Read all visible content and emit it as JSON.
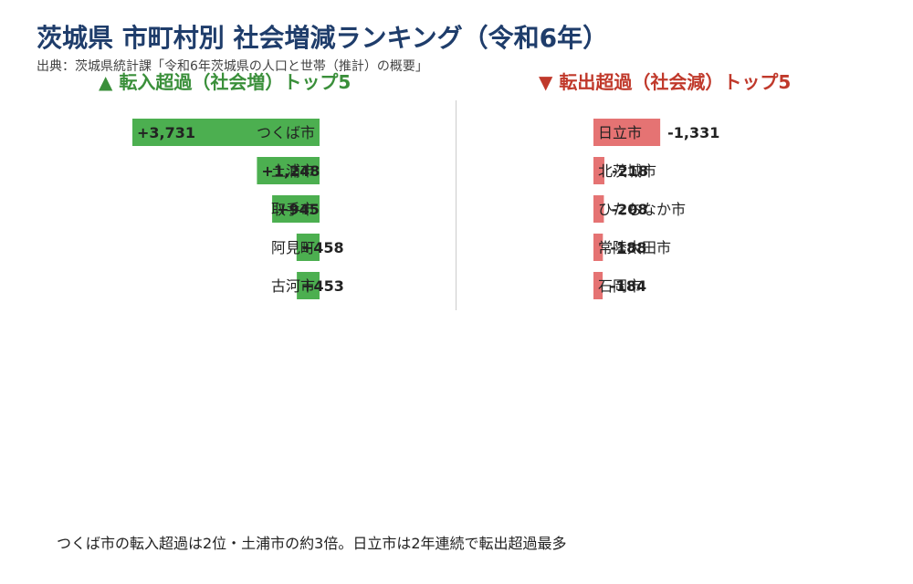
{
  "title": "茨城県 市町村別 社会増減ランキング（令和6年）",
  "source": "出典：茨城県統計課「令和6年茨城県の人口と世帯（推計）の概要」",
  "note": "つくば市の転入超過は2位・土浦市の約3倍。日立市は2年連続で転出超過最多",
  "colors": {
    "increase": "#4caf50",
    "decrease": "#e57373",
    "title": "#1f3d6b",
    "increase_heading": "#3a8f3a",
    "decrease_heading": "#c0392b"
  },
  "chart_data": [
    {
      "type": "bar",
      "orientation": "horizontal",
      "title": "▲ 転入超過（社会増）トップ5",
      "categories": [
        "つくば市",
        "土浦市",
        "取手市",
        "阿見町",
        "古河市"
      ],
      "values": [
        3731,
        1248,
        945,
        458,
        453
      ],
      "value_labels": [
        "+3,731",
        "+1,248",
        "+945",
        "+458",
        "+453"
      ],
      "grid": false
    },
    {
      "type": "bar",
      "orientation": "horizontal",
      "title": "▼ 転出超過（社会減）トップ5",
      "categories": [
        "日立市",
        "北茨城市",
        "ひたちなか市",
        "常陸太田市",
        "石岡市"
      ],
      "values": [
        -1331,
        -218,
        -208,
        -188,
        -184
      ],
      "value_labels": [
        "-1,331",
        "-218",
        "-208",
        "-188",
        "-184"
      ],
      "grid": false
    }
  ]
}
